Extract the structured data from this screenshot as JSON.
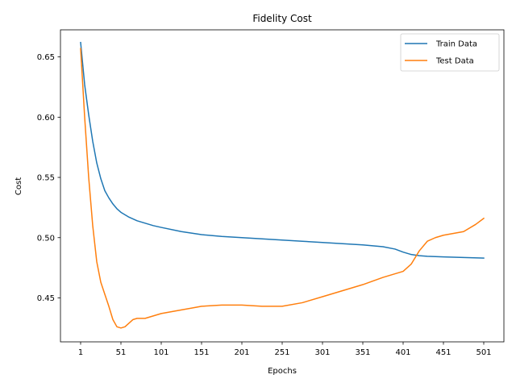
{
  "chart_data": {
    "type": "line",
    "title": "Fidelity Cost",
    "xlabel": "Epochs",
    "ylabel": "Cost",
    "xlim": [
      -24,
      526
    ],
    "ylim": [
      0.4135,
      0.6725
    ],
    "xticks": [
      1,
      51,
      101,
      151,
      201,
      251,
      301,
      351,
      401,
      451,
      501
    ],
    "yticks": [
      0.45,
      0.5,
      0.55,
      0.6,
      0.65
    ],
    "ytick_labels": [
      "0.45",
      "0.50",
      "0.55",
      "0.60",
      "0.65"
    ],
    "grid": false,
    "legend_position": "top-right",
    "series": [
      {
        "name": "Train Data",
        "color": "#1f77b4",
        "x": [
          1,
          6,
          11,
          16,
          21,
          26,
          31,
          36,
          41,
          46,
          51,
          61,
          71,
          81,
          91,
          101,
          126,
          151,
          176,
          201,
          226,
          251,
          276,
          301,
          326,
          351,
          376,
          391,
          401,
          411,
          421,
          431,
          451,
          476,
          501
        ],
        "y": [
          0.662,
          0.627,
          0.602,
          0.58,
          0.562,
          0.549,
          0.539,
          0.533,
          0.528,
          0.524,
          0.521,
          0.517,
          0.514,
          0.512,
          0.51,
          0.5085,
          0.505,
          0.5025,
          0.501,
          0.5,
          0.499,
          0.498,
          0.497,
          0.496,
          0.495,
          0.494,
          0.4925,
          0.4905,
          0.488,
          0.486,
          0.485,
          0.4845,
          0.484,
          0.4835,
          0.483
        ]
      },
      {
        "name": "Test Data",
        "color": "#ff7f0e",
        "x": [
          1,
          6,
          11,
          16,
          21,
          26,
          31,
          36,
          41,
          46,
          51,
          56,
          61,
          66,
          71,
          81,
          91,
          101,
          126,
          151,
          176,
          201,
          226,
          251,
          276,
          301,
          326,
          351,
          376,
          391,
          401,
          411,
          421,
          431,
          441,
          451,
          476,
          491,
          501
        ],
        "y": [
          0.657,
          0.6,
          0.55,
          0.51,
          0.48,
          0.463,
          0.453,
          0.443,
          0.432,
          0.426,
          0.425,
          0.426,
          0.429,
          0.432,
          0.433,
          0.433,
          0.435,
          0.437,
          0.44,
          0.443,
          0.444,
          0.444,
          0.443,
          0.443,
          0.446,
          0.451,
          0.456,
          0.461,
          0.467,
          0.47,
          0.472,
          0.478,
          0.489,
          0.497,
          0.5,
          0.502,
          0.505,
          0.511,
          0.516
        ]
      }
    ]
  }
}
